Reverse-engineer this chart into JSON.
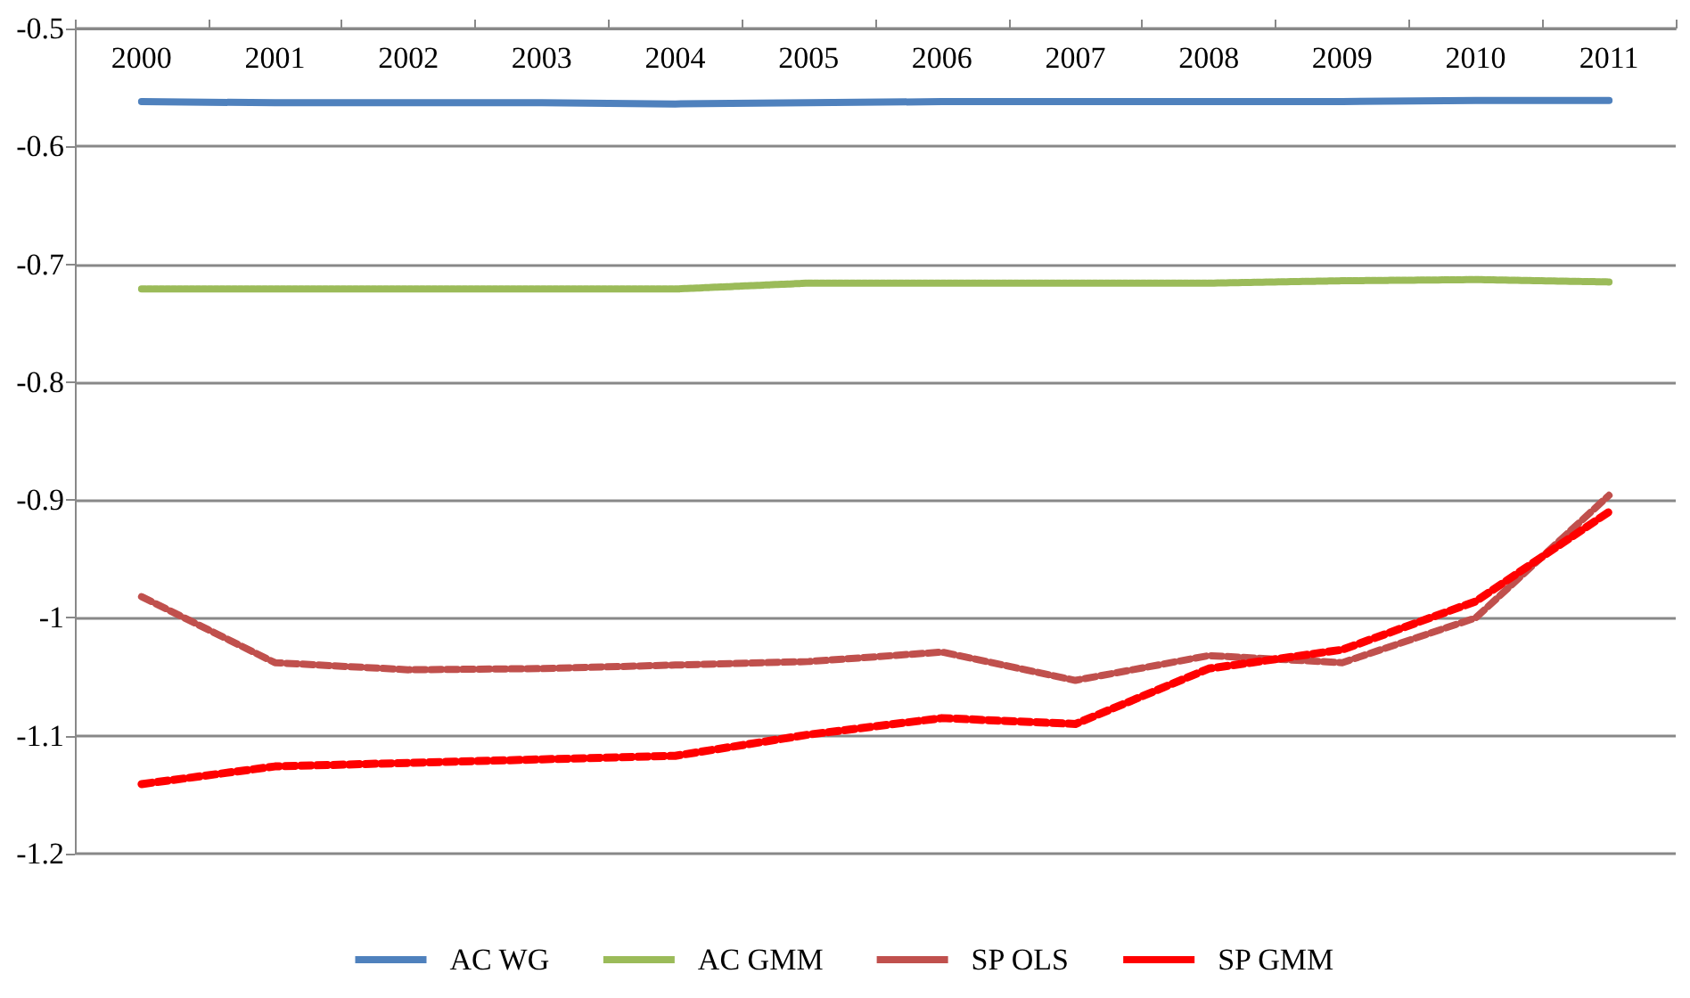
{
  "chart_data": {
    "type": "line",
    "categories": [
      "2000",
      "2001",
      "2002",
      "2003",
      "2004",
      "2005",
      "2006",
      "2007",
      "2008",
      "2009",
      "2010",
      "2011"
    ],
    "series": [
      {
        "name": "AC WG",
        "color": "#4f81bd",
        "line_style": "solid",
        "values": [
          -0.562,
          -0.563,
          -0.563,
          -0.563,
          -0.564,
          -0.563,
          -0.562,
          -0.562,
          -0.562,
          -0.562,
          -0.561,
          -0.561
        ]
      },
      {
        "name": "AC GMM",
        "color": "#9bbb59",
        "line_style": "dotted",
        "values": [
          -0.721,
          -0.721,
          -0.721,
          -0.721,
          -0.721,
          -0.716,
          -0.716,
          -0.716,
          -0.716,
          -0.714,
          -0.713,
          -0.715
        ]
      },
      {
        "name": "SP OLS",
        "color": "#c0504d",
        "line_style": "dashed",
        "values": [
          -0.982,
          -1.038,
          -1.044,
          -1.043,
          -1.04,
          -1.037,
          -1.029,
          -1.053,
          -1.032,
          -1.038,
          -1.0,
          -0.896
        ]
      },
      {
        "name": "SP GMM",
        "color": "#ff0000",
        "line_style": "dashed",
        "values": [
          -1.141,
          -1.126,
          -1.123,
          -1.12,
          -1.117,
          -1.099,
          -1.085,
          -1.09,
          -1.043,
          -1.027,
          -0.986,
          -0.91
        ]
      }
    ],
    "ylim": [
      -1.2,
      -0.5
    ],
    "yticks": [
      -1.2,
      -1.1,
      -1,
      -0.9,
      -0.8,
      -0.7,
      -0.6,
      -0.5
    ],
    "grid": "y",
    "legend": "bottom",
    "marker": "none"
  }
}
